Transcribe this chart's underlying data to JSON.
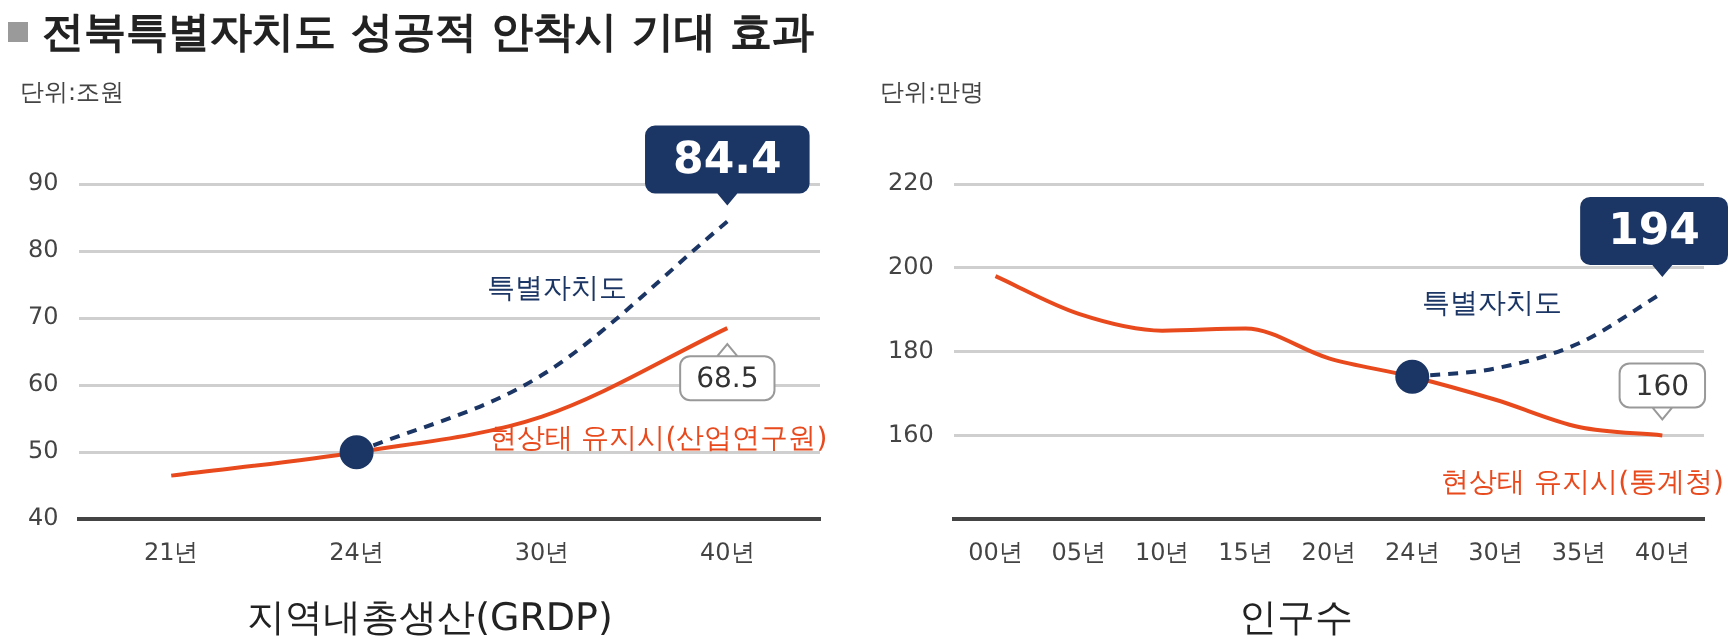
{
  "chart_data": [
    {
      "type": "line",
      "title": "전북특별자치도 성공적 안착시 기대 효과",
      "ylabel": "단위:조원",
      "xlabel": "지역내총생산(GRDP)",
      "categories": [
        "21년",
        "24년",
        "30년",
        "40년"
      ],
      "series": [
        {
          "name": "특별자치도",
          "color": "#1b3564",
          "line_style": "dashed",
          "marker": "none",
          "values": [
            null,
            50,
            61.5,
            84.4
          ],
          "value_labels": [
            null,
            null,
            null,
            "84.4"
          ]
        },
        {
          "name": "현상태 유지시(산업연구원)",
          "color": "#e8491d",
          "line_style": "solid",
          "marker": "none",
          "values": [
            46.5,
            50,
            55.3,
            68.5
          ],
          "value_labels": [
            null,
            null,
            null,
            "68.5"
          ]
        },
        {
          "type": "scatter",
          "color": "#1b3564",
          "marker": "circle",
          "x": [
            "24년"
          ],
          "values": [
            50
          ]
        }
      ],
      "ylim": [
        40,
        90
      ],
      "yticks": [
        40,
        50,
        60,
        70,
        80,
        90
      ],
      "grid": "y"
    },
    {
      "type": "line",
      "ylabel": "단위:만명",
      "xlabel": "인구수",
      "categories": [
        "00년",
        "05년",
        "10년",
        "15년",
        "20년",
        "24년",
        "30년",
        "35년",
        "40년"
      ],
      "series": [
        {
          "name": "특별자치도",
          "color": "#1b3564",
          "line_style": "dashed",
          "marker": "none",
          "values": [
            null,
            null,
            null,
            null,
            null,
            174,
            176,
            182,
            194
          ],
          "value_labels": [
            null,
            null,
            null,
            null,
            null,
            null,
            null,
            null,
            "194"
          ]
        },
        {
          "name": "현상태 유지시(통계청)",
          "color": "#e8491d",
          "line_style": "solid",
          "marker": "none",
          "values": [
            198,
            189,
            185,
            185.5,
            178.4,
            174,
            168.5,
            162,
            160
          ],
          "value_labels": [
            null,
            null,
            null,
            null,
            null,
            null,
            null,
            null,
            "160"
          ]
        },
        {
          "type": "scatter",
          "color": "#1b3564",
          "marker": "circle",
          "x": [
            "24년"
          ],
          "values": [
            174
          ]
        }
      ],
      "ylim": [
        140,
        220
      ],
      "yticks": [
        160,
        180,
        200,
        220
      ],
      "grid": "y"
    }
  ]
}
